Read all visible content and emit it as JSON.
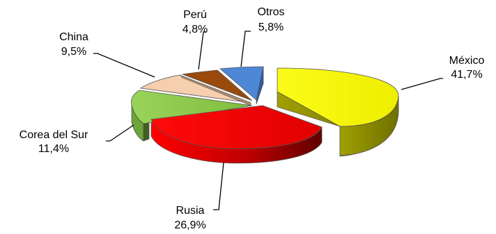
{
  "chart_data": {
    "type": "pie",
    "style": "3d-exploded",
    "title": "",
    "slices": [
      {
        "label": "México",
        "value": 41.7,
        "value_label": "41,7%",
        "color": "#f2f200"
      },
      {
        "label": "Rusia",
        "value": 26.9,
        "value_label": "26,9%",
        "color": "#e80000"
      },
      {
        "label": "Corea del Sur",
        "value": 11.4,
        "value_label": "11,4%",
        "color": "#8cc64a"
      },
      {
        "label": "China",
        "value": 9.5,
        "value_label": "9,5%",
        "color": "#f5cfae"
      },
      {
        "label": "Perú",
        "value": 4.8,
        "value_label": "4,8%",
        "color": "#9a4a0c"
      },
      {
        "label": "Otros",
        "value": 5.8,
        "value_label": "5,8%",
        "color": "#4d87d6"
      }
    ],
    "legend": "none"
  }
}
